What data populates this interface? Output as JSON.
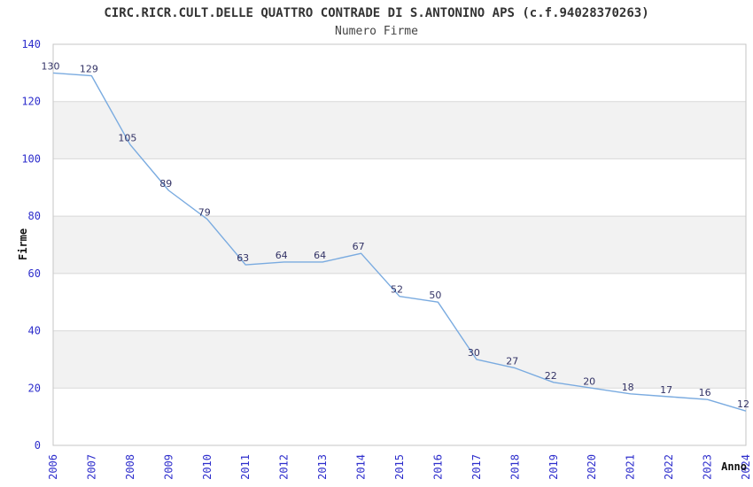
{
  "header": {
    "title": "CIRC.RICR.CULT.DELLE QUATTRO CONTRADE DI S.ANTONINO APS (c.f.94028370263)",
    "subtitle": "Numero Firme"
  },
  "chart_data": {
    "type": "line",
    "title": "CIRC.RICR.CULT.DELLE QUATTRO CONTRADE DI S.ANTONINO APS (c.f.94028370263)",
    "subtitle": "Numero Firme",
    "xlabel": "Anno",
    "ylabel": "Firme",
    "categories": [
      "2006",
      "2007",
      "2008",
      "2009",
      "2010",
      "2011",
      "2012",
      "2013",
      "2014",
      "2015",
      "2016",
      "2017",
      "2018",
      "2019",
      "2020",
      "2021",
      "2022",
      "2023",
      "2024"
    ],
    "values": [
      130,
      129,
      105,
      89,
      79,
      63,
      64,
      64,
      67,
      52,
      50,
      30,
      27,
      22,
      20,
      18,
      17,
      16,
      12
    ],
    "ylim": [
      0,
      140
    ],
    "ytick_interval": 20,
    "grid": true,
    "legend": "none",
    "band_ranges": [
      [
        20,
        40
      ],
      [
        60,
        80
      ],
      [
        100,
        120
      ]
    ],
    "colors": {
      "line": "#7aabe0",
      "tick_label": "#2e2ecc",
      "point_label": "#333366",
      "grid": "#d8d8d8",
      "band": "#f2f2f2",
      "border": "#c6c6c6",
      "title": "#333333",
      "axis_title": "#111111",
      "background": "#ffffff"
    }
  }
}
